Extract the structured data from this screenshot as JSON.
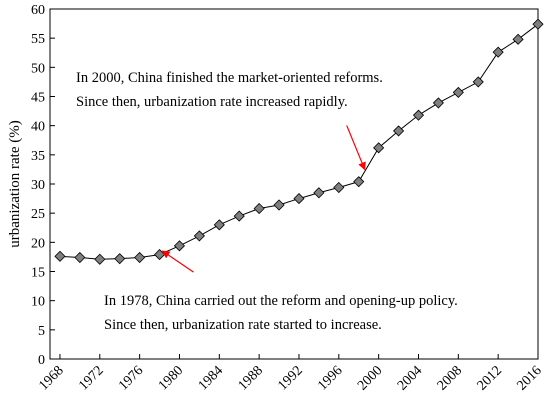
{
  "chart_data": {
    "type": "line",
    "title": "",
    "xlabel": "",
    "ylabel": "urbanization rate (%)",
    "xlim": [
      1967,
      2016
    ],
    "ylim": [
      0,
      60
    ],
    "xticks": [
      1968,
      1972,
      1976,
      1980,
      1984,
      1988,
      1992,
      1996,
      2000,
      2004,
      2008,
      2012,
      2016
    ],
    "yticks": [
      0,
      5,
      10,
      15,
      20,
      25,
      30,
      35,
      40,
      45,
      50,
      55,
      60
    ],
    "grid": false,
    "legend": "none",
    "series": [
      {
        "marker": "diamond",
        "color": "#7f7f7f",
        "x": [
          1968,
          1970,
          1972,
          1974,
          1976,
          1978,
          1980,
          1982,
          1984,
          1986,
          1988,
          1990,
          1992,
          1994,
          1996,
          1998,
          2000,
          2002,
          2004,
          2006,
          2008,
          2010,
          2012,
          2014,
          2016
        ],
        "y": [
          17.6,
          17.4,
          17.1,
          17.2,
          17.4,
          17.9,
          19.4,
          21.1,
          23.0,
          24.5,
          25.8,
          26.4,
          27.5,
          28.5,
          29.4,
          30.4,
          36.2,
          39.1,
          41.8,
          43.9,
          45.7,
          47.5,
          52.6,
          54.8,
          57.4
        ]
      }
    ],
    "annotations": [
      {
        "lines": [
          "In 2000, China finished the market-oriented reforms.",
          "Since then, urbanization rate increased rapidly."
        ],
        "arrow_to": [
          1998.6,
          32.5
        ],
        "arrow_color": "#ff0000"
      },
      {
        "lines": [
          "In 1978, China carried out the reform and opening-up policy.",
          "Since then, urbanization rate started to increase."
        ],
        "arrow_to": [
          1978.3,
          18.5
        ],
        "arrow_color": "#ff0000"
      }
    ]
  }
}
